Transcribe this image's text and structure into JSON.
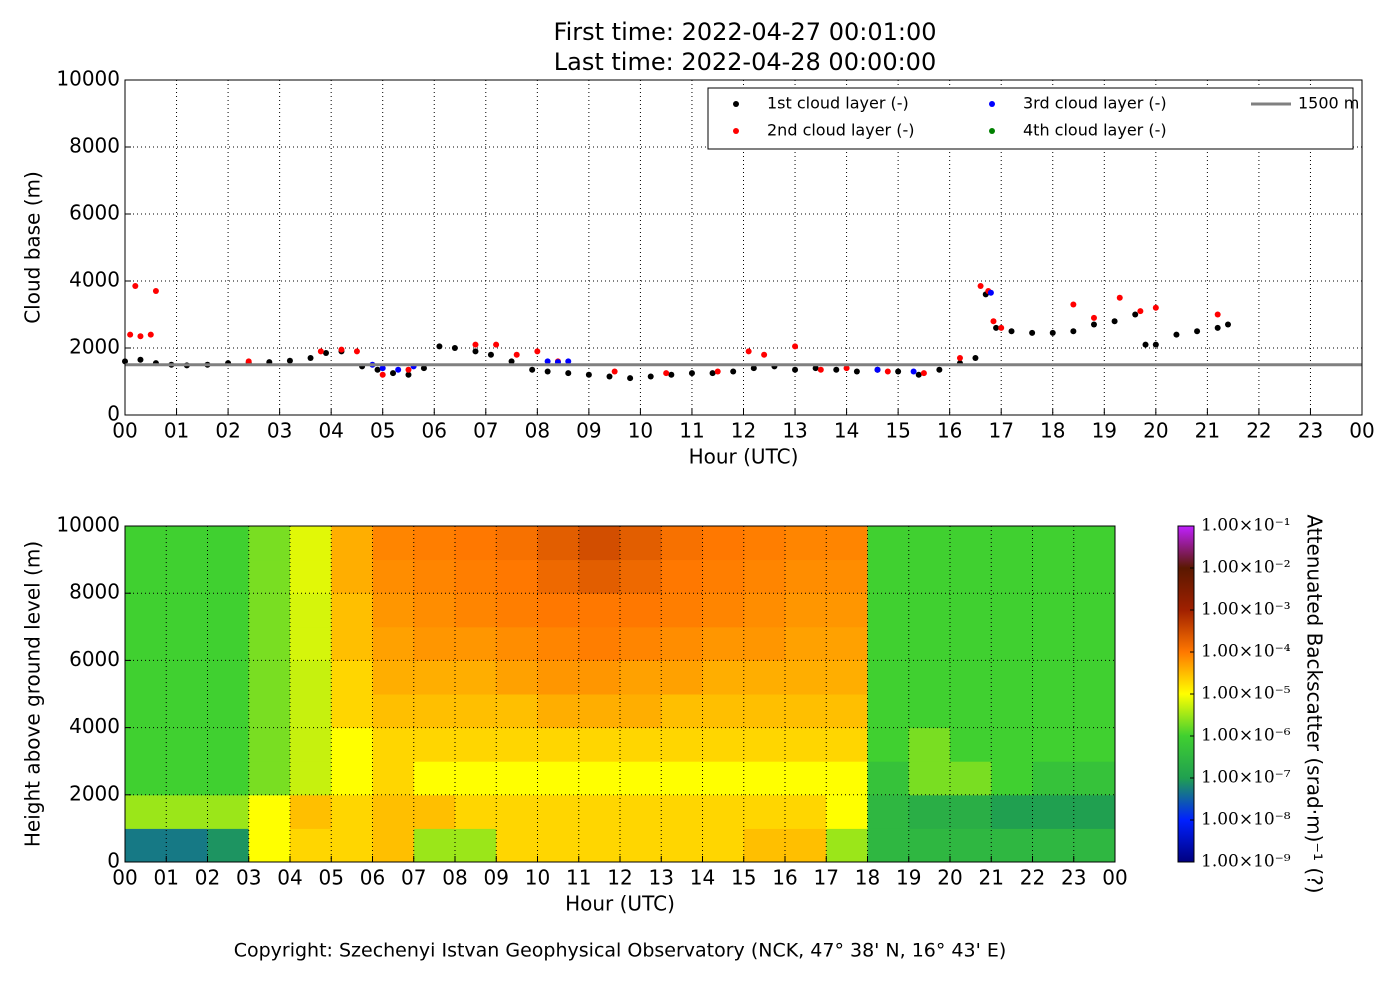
{
  "chart_data": [
    {
      "type": "scatter",
      "title": [
        "First time: 2022-04-27 00:01:00",
        "Last time: 2022-04-28 00:00:00"
      ],
      "xlabel": "Hour (UTC)",
      "ylabel": "Cloud base (m)",
      "xlim": [
        0,
        24
      ],
      "ylim": [
        0,
        10000
      ],
      "xticks": [
        {
          "value": 0,
          "label": "00"
        },
        {
          "value": 1,
          "label": "01"
        },
        {
          "value": 2,
          "label": "02"
        },
        {
          "value": 3,
          "label": "03"
        },
        {
          "value": 4,
          "label": "04"
        },
        {
          "value": 5,
          "label": "05"
        },
        {
          "value": 6,
          "label": "06"
        },
        {
          "value": 7,
          "label": "07"
        },
        {
          "value": 8,
          "label": "08"
        },
        {
          "value": 9,
          "label": "09"
        },
        {
          "value": 10,
          "label": "10"
        },
        {
          "value": 11,
          "label": "11"
        },
        {
          "value": 12,
          "label": "12"
        },
        {
          "value": 13,
          "label": "13"
        },
        {
          "value": 14,
          "label": "14"
        },
        {
          "value": 15,
          "label": "15"
        },
        {
          "value": 16,
          "label": "16"
        },
        {
          "value": 17,
          "label": "17"
        },
        {
          "value": 18,
          "label": "18"
        },
        {
          "value": 19,
          "label": "19"
        },
        {
          "value": 20,
          "label": "20"
        },
        {
          "value": 21,
          "label": "21"
        },
        {
          "value": 22,
          "label": "22"
        },
        {
          "value": 23,
          "label": "23"
        },
        {
          "value": 24,
          "label": "00"
        }
      ],
      "yticks": [
        0,
        2000,
        4000,
        6000,
        8000,
        10000
      ],
      "grid": true,
      "legend": "upper right",
      "legend_columns": 3,
      "series": [
        {
          "name": "1st cloud layer (-)",
          "color": "#000000",
          "marker": "dot",
          "x": [
            0,
            0.3,
            0.6,
            0.9,
            1.2,
            1.6,
            2.0,
            2.4,
            2.8,
            3.2,
            3.6,
            3.9,
            4.2,
            4.6,
            4.9,
            5.2,
            5.5,
            5.8,
            6.1,
            6.4,
            6.8,
            7.1,
            7.5,
            7.9,
            8.2,
            8.6,
            9.0,
            9.4,
            9.8,
            10.2,
            10.6,
            11.0,
            11.4,
            11.8,
            12.2,
            12.6,
            13.0,
            13.4,
            13.8,
            14.2,
            14.6,
            15.0,
            15.4,
            15.8,
            16.2,
            16.5,
            16.7,
            16.9,
            17.2,
            17.6,
            18.0,
            18.4,
            18.8,
            19.2,
            19.6,
            19.8,
            20.0,
            20.4,
            20.8,
            21.2,
            21.4
          ],
          "values": [
            1600,
            1650,
            1550,
            1500,
            1480,
            1500,
            1550,
            1560,
            1580,
            1620,
            1700,
            1850,
            1900,
            1450,
            1350,
            1250,
            1200,
            1400,
            2050,
            2000,
            1900,
            1800,
            1600,
            1350,
            1300,
            1250,
            1200,
            1150,
            1100,
            1150,
            1200,
            1250,
            1250,
            1300,
            1400,
            1450,
            1350,
            1400,
            1350,
            1300,
            1350,
            1300,
            1200,
            1350,
            1550,
            1700,
            3600,
            2600,
            2500,
            2450,
            2450,
            2500,
            2700,
            2800,
            3000,
            2100,
            2100,
            2400,
            2500,
            2600,
            2700
          ]
        },
        {
          "name": "2nd cloud layer (-)",
          "color": "#ff0000",
          "marker": "dot",
          "x": [
            0.1,
            0.2,
            0.3,
            0.5,
            0.6,
            2.4,
            3.8,
            4.2,
            4.5,
            5.0,
            5.5,
            6.8,
            7.2,
            7.6,
            8.0,
            8.4,
            9.5,
            10.5,
            11.5,
            12.1,
            12.4,
            13.0,
            13.5,
            14.0,
            14.8,
            15.5,
            16.2,
            16.6,
            16.75,
            16.85,
            17.0,
            18.4,
            18.8,
            19.3,
            19.7,
            20.0,
            21.2
          ],
          "values": [
            2400,
            3850,
            2350,
            2400,
            3700,
            1600,
            1900,
            1950,
            1900,
            1200,
            1350,
            2100,
            2100,
            1800,
            1900,
            1600,
            1300,
            1250,
            1300,
            1900,
            1800,
            2050,
            1350,
            1400,
            1300,
            1250,
            1700,
            3850,
            3700,
            2800,
            2600,
            3300,
            2900,
            3500,
            3100,
            3200,
            3000
          ]
        },
        {
          "name": "3rd cloud layer (-)",
          "color": "#0000ff",
          "marker": "dot",
          "x": [
            4.8,
            5.0,
            5.3,
            5.6,
            8.2,
            8.4,
            8.6,
            14.6,
            15.3,
            16.8
          ],
          "values": [
            1500,
            1400,
            1350,
            1450,
            1600,
            1580,
            1600,
            1350,
            1300,
            3650
          ]
        },
        {
          "name": "4th cloud layer (-)",
          "color": "#008000",
          "marker": "dot",
          "x": [],
          "values": []
        },
        {
          "name": "1500 m",
          "color": "#808080",
          "marker": "line",
          "x": [
            0,
            24
          ],
          "values": [
            1500,
            1500
          ]
        }
      ]
    },
    {
      "type": "heatmap",
      "xlabel": "Hour (UTC)",
      "ylabel": "Height above ground level (m)",
      "colorbar_label": "Attenuated Backscatter (srad·m)⁻¹ (?)",
      "xlim": [
        0,
        24
      ],
      "ylim": [
        0,
        10000
      ],
      "xticks": [
        {
          "value": 0,
          "label": "00"
        },
        {
          "value": 1,
          "label": "01"
        },
        {
          "value": 2,
          "label": "02"
        },
        {
          "value": 3,
          "label": "03"
        },
        {
          "value": 4,
          "label": "04"
        },
        {
          "value": 5,
          "label": "05"
        },
        {
          "value": 6,
          "label": "06"
        },
        {
          "value": 7,
          "label": "07"
        },
        {
          "value": 8,
          "label": "08"
        },
        {
          "value": 9,
          "label": "09"
        },
        {
          "value": 10,
          "label": "10"
        },
        {
          "value": 11,
          "label": "11"
        },
        {
          "value": 12,
          "label": "12"
        },
        {
          "value": 13,
          "label": "13"
        },
        {
          "value": 14,
          "label": "14"
        },
        {
          "value": 15,
          "label": "15"
        },
        {
          "value": 16,
          "label": "16"
        },
        {
          "value": 17,
          "label": "17"
        },
        {
          "value": 18,
          "label": "18"
        },
        {
          "value": 19,
          "label": "19"
        },
        {
          "value": 20,
          "label": "20"
        },
        {
          "value": 21,
          "label": "21"
        },
        {
          "value": 22,
          "label": "22"
        },
        {
          "value": 23,
          "label": "23"
        },
        {
          "value": 24,
          "label": "00"
        }
      ],
      "yticks": [
        0,
        2000,
        4000,
        6000,
        8000,
        10000
      ],
      "grid": true,
      "log_color_scale": true,
      "xbins": [
        0,
        1,
        2,
        3,
        4,
        5,
        6,
        7,
        8,
        9,
        10,
        11,
        12,
        13,
        14,
        15,
        16,
        17,
        18,
        19,
        20,
        21,
        22,
        23,
        24
      ],
      "ybins": [
        0,
        1000,
        2000,
        3000,
        4000,
        5000,
        6000,
        7000,
        8000,
        9000,
        10000
      ],
      "z": [
        [
          5e-08,
          5e-08,
          8e-08,
          1e-05,
          2e-05,
          2e-05,
          3e-05,
          3e-06,
          3e-06,
          2e-05,
          2e-05,
          2e-05,
          2e-05,
          2e-05,
          2e-05,
          3e-05,
          3e-05,
          3e-06,
          3e-07,
          3e-07,
          3e-07,
          3e-07,
          3e-07,
          3e-07
        ],
        [
          3e-06,
          3e-06,
          3e-06,
          1e-05,
          3e-05,
          2e-05,
          3e-05,
          3e-05,
          2e-05,
          2e-05,
          2e-05,
          2e-05,
          2e-05,
          2e-05,
          2e-05,
          2e-05,
          2e-05,
          1e-05,
          3e-07,
          2e-07,
          2e-07,
          1e-07,
          1e-07,
          1e-07
        ],
        [
          1e-06,
          1e-06,
          1e-06,
          2e-06,
          5e-06,
          1e-05,
          2e-05,
          1e-05,
          1e-05,
          1e-05,
          1e-05,
          1e-05,
          1e-05,
          1e-05,
          1e-05,
          1e-05,
          1e-05,
          1e-05,
          5e-07,
          2e-06,
          2e-06,
          1e-06,
          5e-07,
          5e-07
        ],
        [
          1e-06,
          1e-06,
          1e-06,
          2e-06,
          5e-06,
          1e-05,
          2e-05,
          2e-05,
          2e-05,
          2e-05,
          2e-05,
          2e-05,
          2e-05,
          2e-05,
          2e-05,
          2e-05,
          2e-05,
          2e-05,
          1e-06,
          2e-06,
          1e-06,
          1e-06,
          1e-06,
          1e-06
        ],
        [
          1e-06,
          1e-06,
          1e-06,
          2e-06,
          5e-06,
          2e-05,
          3e-05,
          3e-05,
          3e-05,
          3e-05,
          4e-05,
          4e-05,
          4e-05,
          3e-05,
          3e-05,
          3e-05,
          3e-05,
          3e-05,
          1e-06,
          1e-06,
          1e-06,
          1e-06,
          1e-06,
          1e-06
        ],
        [
          1e-06,
          1e-06,
          1e-06,
          2e-06,
          5e-06,
          2e-05,
          4e-05,
          4e-05,
          4e-05,
          5e-05,
          6e-05,
          6e-05,
          5e-05,
          5e-05,
          4e-05,
          4e-05,
          4e-05,
          4e-05,
          1e-06,
          1e-06,
          1e-06,
          1e-06,
          1e-06,
          1e-06
        ],
        [
          1e-06,
          1e-06,
          1e-06,
          2e-06,
          6e-06,
          3e-05,
          5e-05,
          6e-05,
          6e-05,
          7e-05,
          8e-05,
          9e-05,
          8e-05,
          7e-05,
          6e-05,
          6e-05,
          5e-05,
          5e-05,
          1e-06,
          1e-06,
          1e-06,
          1e-06,
          1e-06,
          1e-06
        ],
        [
          1e-06,
          1e-06,
          1e-06,
          2e-06,
          6e-06,
          3e-05,
          6e-05,
          7e-05,
          8e-05,
          9e-05,
          0.0001,
          0.0001,
          0.0001,
          9e-05,
          8e-05,
          7e-05,
          6e-05,
          6e-05,
          1e-06,
          1e-06,
          1e-06,
          1e-06,
          1e-06,
          1e-06
        ],
        [
          1e-06,
          1e-06,
          1e-06,
          2e-06,
          7e-06,
          4e-05,
          7e-05,
          8e-05,
          9e-05,
          0.0001,
          0.00015,
          0.0002,
          0.00015,
          0.0001,
          9e-05,
          8e-05,
          7e-05,
          7e-05,
          1e-06,
          1e-06,
          1e-06,
          1e-06,
          1e-06,
          1e-06
        ],
        [
          1e-06,
          1e-06,
          1e-06,
          2e-06,
          7e-06,
          4e-05,
          8e-05,
          9e-05,
          0.0001,
          0.00012,
          0.0002,
          0.0003,
          0.0002,
          0.00012,
          0.0001,
          9e-05,
          8e-05,
          8e-05,
          1e-06,
          1e-06,
          1e-06,
          1e-06,
          1e-06,
          1e-06
        ]
      ],
      "colorbar_ticks": [
        {
          "value": 1e-09,
          "label": "1.00×10⁻⁹"
        },
        {
          "value": 1e-08,
          "label": "1.00×10⁻⁸"
        },
        {
          "value": 1e-07,
          "label": "1.00×10⁻⁷"
        },
        {
          "value": 1e-06,
          "label": "1.00×10⁻⁶"
        },
        {
          "value": 1e-05,
          "label": "1.00×10⁻⁵"
        },
        {
          "value": 0.0001,
          "label": "1.00×10⁻⁴"
        },
        {
          "value": 0.001,
          "label": "1.00×10⁻³"
        },
        {
          "value": 0.01,
          "label": "1.00×10⁻²"
        },
        {
          "value": 0.1,
          "label": "1.00×10⁻¹"
        }
      ],
      "colorbar_colors": [
        "#00007f",
        "#0020ff",
        "#20a050",
        "#40d030",
        "#ffff00",
        "#ff7800",
        "#a02000",
        "#5a1800",
        "#c020ff"
      ]
    }
  ],
  "footer": "Copyright: Szechenyi Istvan Geophysical Observatory (NCK, 47° 38' N, 16° 43' E)"
}
